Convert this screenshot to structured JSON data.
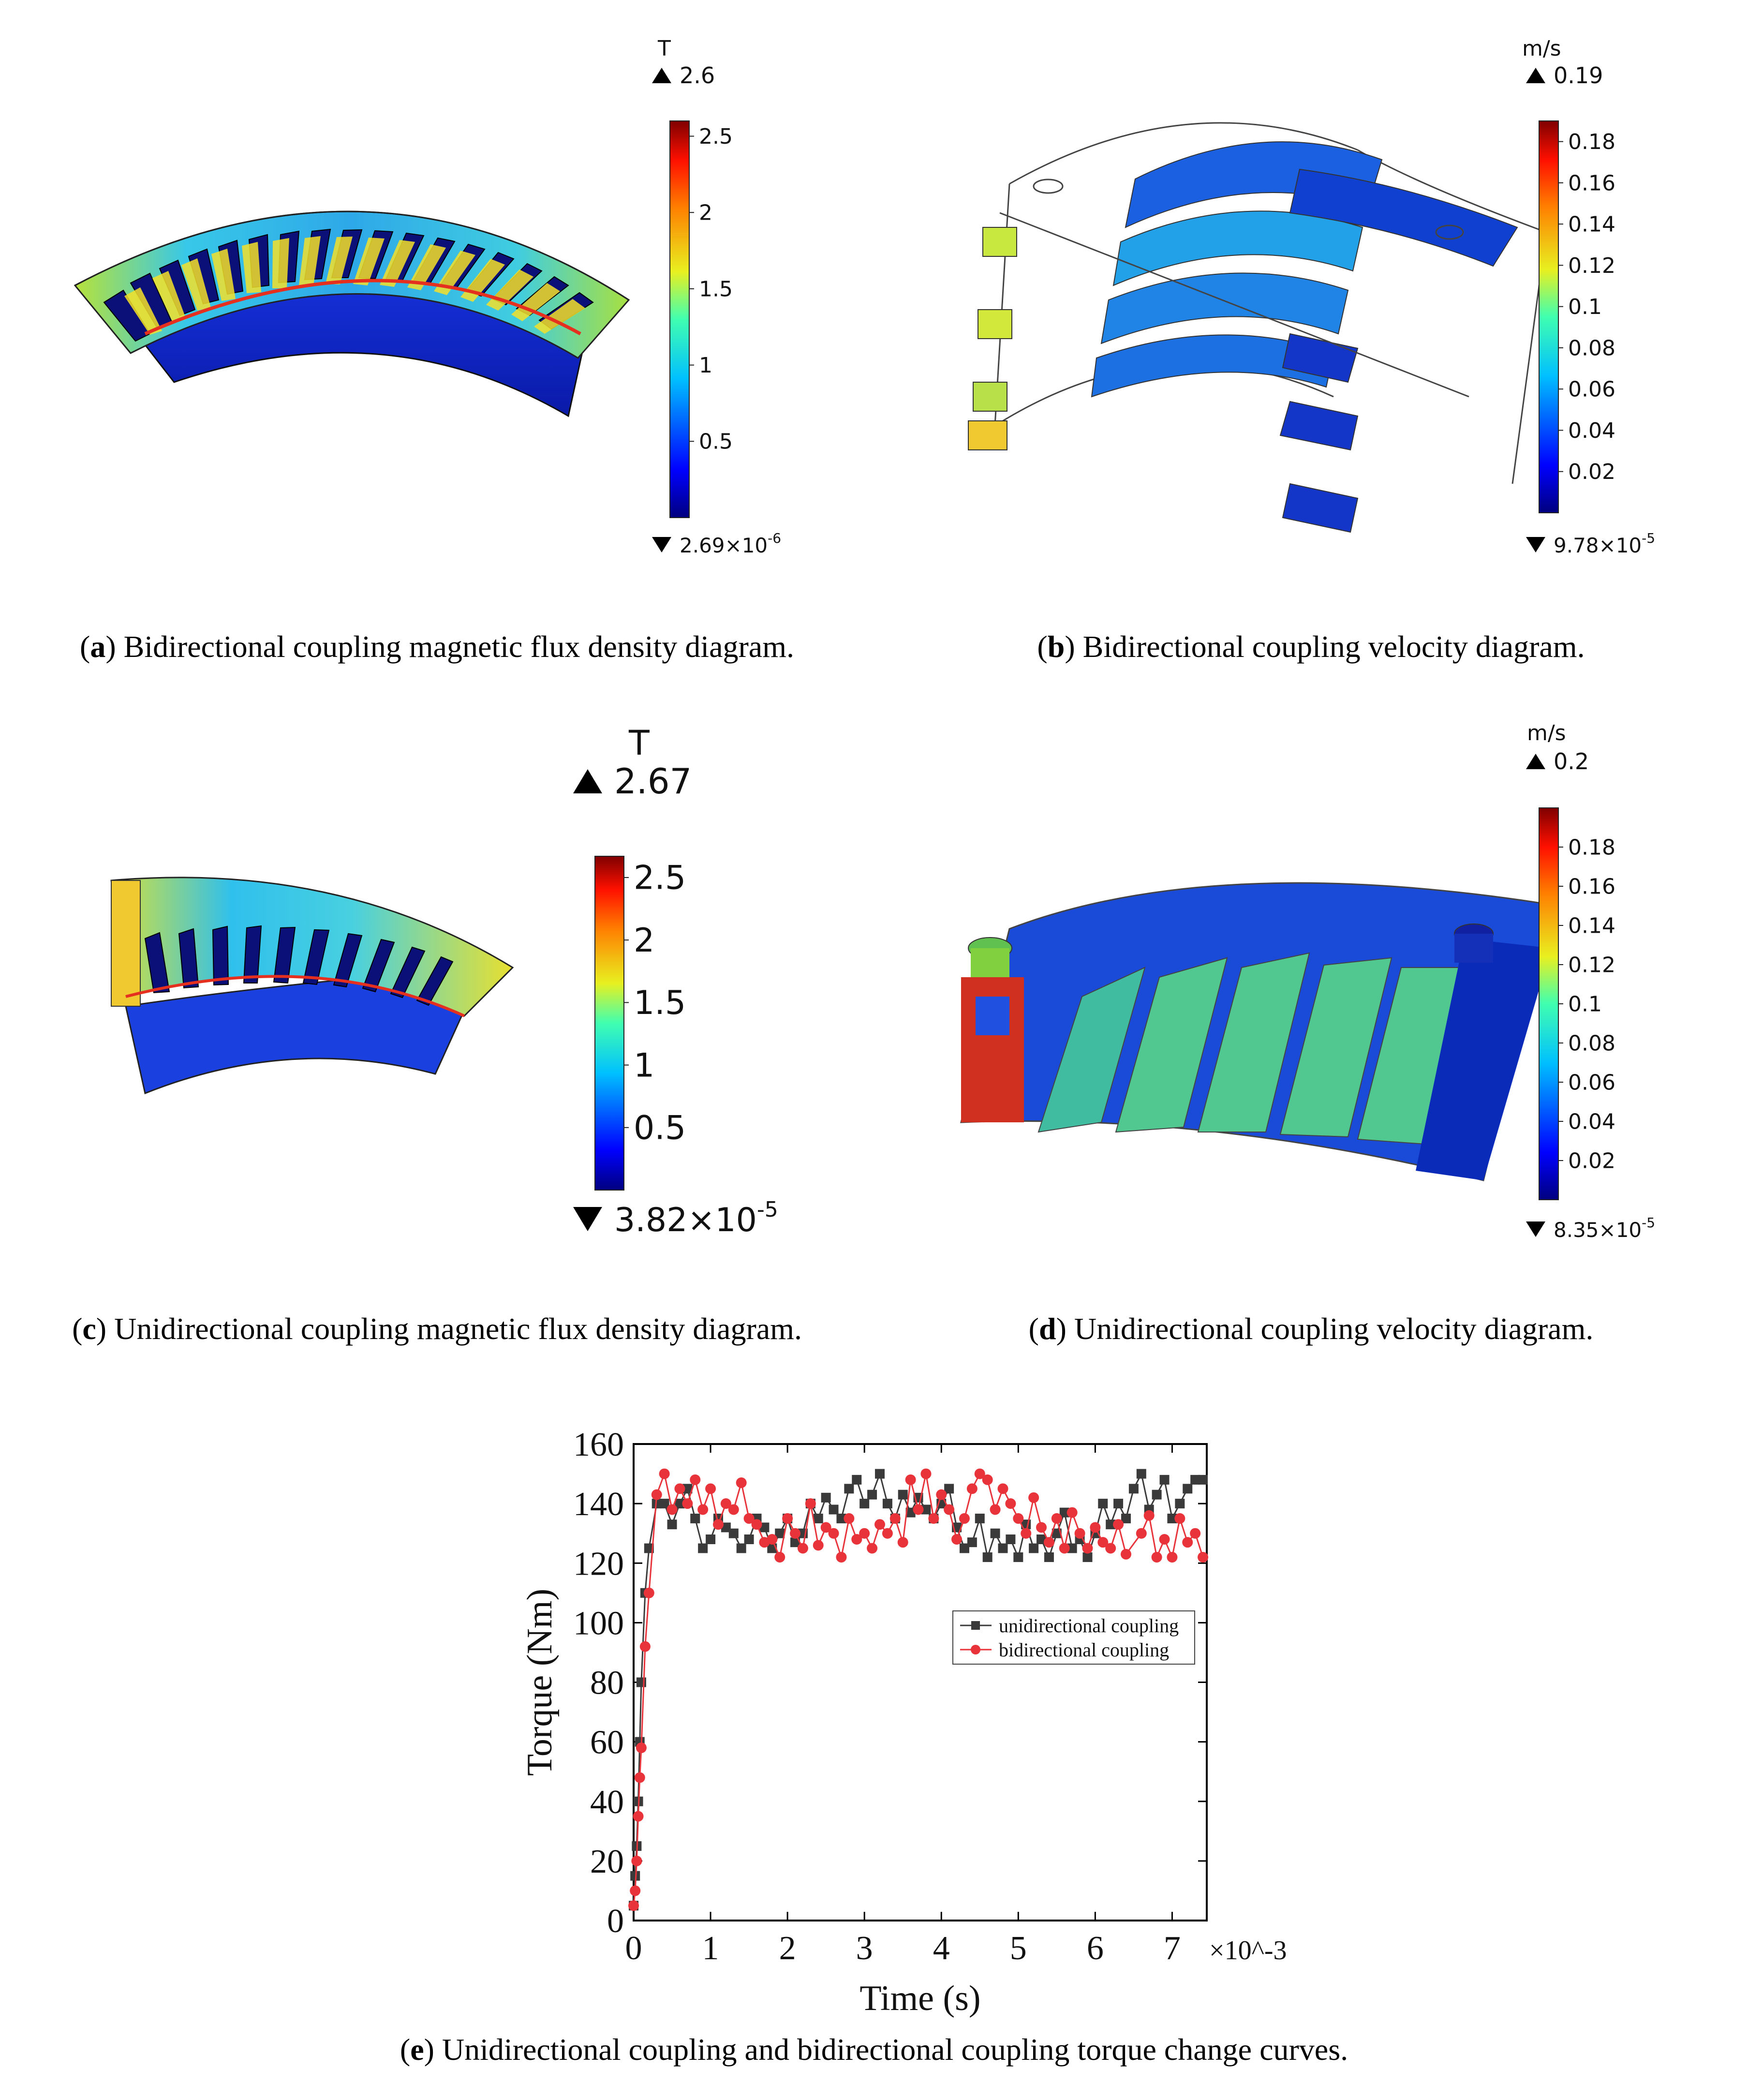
{
  "panels": {
    "a": {
      "letter": "a",
      "caption": "Bidirectional coupling magnetic flux density diagram.",
      "colorbar": {
        "unit": "T",
        "max_label": "2.6",
        "min_base": "2.69×10",
        "min_exp": "-6",
        "ticks": [
          "2.5",
          "2",
          "1.5",
          "1",
          "0.5"
        ]
      }
    },
    "b": {
      "letter": "b",
      "caption": "Bidirectional coupling velocity diagram.",
      "colorbar": {
        "unit": "m/s",
        "max_label": "0.19",
        "min_base": "9.78×10",
        "min_exp": "-5",
        "ticks": [
          "0.18",
          "0.16",
          "0.14",
          "0.12",
          "0.1",
          "0.08",
          "0.06",
          "0.04",
          "0.02"
        ]
      }
    },
    "c": {
      "letter": "c",
      "caption": "Unidirectional coupling magnetic flux density diagram.",
      "colorbar": {
        "unit": "T",
        "max_label": "2.67",
        "min_base": "3.82×10",
        "min_exp": "-5",
        "ticks": [
          "2.5",
          "2",
          "1.5",
          "1",
          "0.5"
        ]
      }
    },
    "d": {
      "letter": "d",
      "caption": "Unidirectional coupling velocity diagram.",
      "colorbar": {
        "unit": "m/s",
        "max_label": "0.2",
        "min_base": "8.35×10",
        "min_exp": "-5",
        "ticks": [
          "0.18",
          "0.16",
          "0.14",
          "0.12",
          "0.1",
          "0.08",
          "0.06",
          "0.04",
          "0.02"
        ]
      }
    },
    "e": {
      "letter": "e",
      "caption": "Unidirectional coupling and bidirectional coupling torque change curves."
    }
  },
  "colors": {
    "unidirectional": "#3a3a3a",
    "bidirectional": "#e8333a",
    "jet_low": "#00007f",
    "jet_high": "#7f0000"
  },
  "chart_data": {
    "type": "line",
    "xlabel": "Time (s)",
    "ylabel": "Torque (Nm)",
    "x_multiplier_label": "×10^-3",
    "xlim": [
      0,
      7.45
    ],
    "ylim": [
      0,
      160
    ],
    "xticks": [
      "0",
      "1",
      "2",
      "3",
      "4",
      "5",
      "6",
      "7"
    ],
    "yticks": [
      "0",
      "20",
      "40",
      "60",
      "80",
      "100",
      "120",
      "140",
      "160"
    ],
    "legend_position": "center-right",
    "grid": false,
    "series": [
      {
        "name": "unidirectional coupling",
        "marker": "square",
        "x": [
          0.0,
          0.02,
          0.04,
          0.06,
          0.08,
          0.1,
          0.15,
          0.2,
          0.3,
          0.4,
          0.5,
          0.6,
          0.7,
          0.8,
          0.9,
          1.0,
          1.1,
          1.2,
          1.3,
          1.4,
          1.5,
          1.6,
          1.7,
          1.8,
          1.9,
          2.0,
          2.1,
          2.2,
          2.3,
          2.4,
          2.5,
          2.6,
          2.7,
          2.8,
          2.9,
          3.0,
          3.1,
          3.2,
          3.3,
          3.4,
          3.5,
          3.6,
          3.7,
          3.8,
          3.9,
          4.0,
          4.1,
          4.2,
          4.3,
          4.4,
          4.5,
          4.6,
          4.7,
          4.8,
          4.9,
          5.0,
          5.1,
          5.2,
          5.3,
          5.4,
          5.5,
          5.6,
          5.7,
          5.8,
          5.9,
          6.0,
          6.1,
          6.2,
          6.3,
          6.4,
          6.5,
          6.6,
          6.7,
          6.8,
          6.9,
          7.0,
          7.1,
          7.2,
          7.3,
          7.4
        ],
        "y": [
          5,
          15,
          25,
          40,
          60,
          80,
          110,
          125,
          140,
          140,
          133,
          140,
          145,
          135,
          125,
          128,
          135,
          132,
          130,
          125,
          128,
          135,
          132,
          125,
          130,
          135,
          127,
          130,
          140,
          135,
          142,
          138,
          135,
          145,
          148,
          140,
          143,
          150,
          140,
          135,
          143,
          137,
          142,
          138,
          135,
          140,
          145,
          132,
          125,
          127,
          135,
          122,
          130,
          125,
          128,
          122,
          133,
          125,
          128,
          122,
          130,
          137,
          125,
          128,
          122,
          130,
          140,
          133,
          140,
          135,
          145,
          150,
          138,
          143,
          148,
          135,
          140,
          145,
          148,
          148
        ]
      },
      {
        "name": "bidirectional coupling",
        "marker": "circle",
        "x": [
          0.0,
          0.02,
          0.04,
          0.06,
          0.08,
          0.1,
          0.15,
          0.2,
          0.3,
          0.4,
          0.5,
          0.6,
          0.7,
          0.8,
          0.9,
          1.0,
          1.1,
          1.2,
          1.3,
          1.4,
          1.5,
          1.6,
          1.7,
          1.8,
          1.9,
          2.0,
          2.1,
          2.2,
          2.3,
          2.4,
          2.5,
          2.6,
          2.7,
          2.8,
          2.9,
          3.0,
          3.1,
          3.2,
          3.3,
          3.4,
          3.5,
          3.6,
          3.7,
          3.8,
          3.9,
          4.0,
          4.1,
          4.2,
          4.3,
          4.4,
          4.5,
          4.6,
          4.7,
          4.8,
          4.9,
          5.0,
          5.1,
          5.2,
          5.3,
          5.4,
          5.5,
          5.6,
          5.7,
          5.8,
          5.9,
          6.0,
          6.1,
          6.2,
          6.3,
          6.4,
          6.6,
          6.7,
          6.8,
          6.9,
          7.0,
          7.1,
          7.2,
          7.3,
          7.4
        ],
        "y": [
          5,
          10,
          20,
          35,
          48,
          58,
          92,
          110,
          143,
          150,
          138,
          145,
          140,
          148,
          138,
          145,
          133,
          140,
          138,
          147,
          135,
          133,
          127,
          128,
          122,
          135,
          130,
          125,
          140,
          126,
          132,
          130,
          122,
          135,
          128,
          130,
          125,
          133,
          130,
          135,
          127,
          148,
          138,
          150,
          135,
          143,
          138,
          128,
          135,
          145,
          150,
          148,
          138,
          145,
          140,
          135,
          130,
          142,
          132,
          127,
          135,
          125,
          137,
          130,
          125,
          132,
          127,
          125,
          133,
          123,
          130,
          136,
          122,
          128,
          122,
          135,
          127,
          130,
          122
        ]
      }
    ]
  }
}
